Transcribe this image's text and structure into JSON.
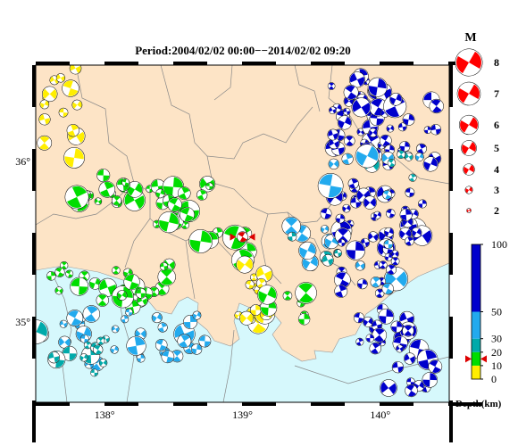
{
  "title": "Period:2004/02/02 00:00−−2014/02/02 09:20",
  "axes": {
    "x_ticks": [
      {
        "value": 138,
        "label": "138°"
      },
      {
        "value": 139,
        "label": "139°"
      },
      {
        "value": 140,
        "label": "140°"
      }
    ],
    "y_ticks": [
      {
        "value": 36,
        "label": "36°"
      },
      {
        "value": 35,
        "label": "35°"
      }
    ],
    "lon_range": [
      137.5,
      140.5
    ],
    "lat_range": [
      34.5,
      36.6
    ]
  },
  "magnitude_legend": {
    "title": "M",
    "entries": [
      {
        "m": 8,
        "label": "8"
      },
      {
        "m": 7,
        "label": "7"
      },
      {
        "m": 6,
        "label": "6"
      },
      {
        "m": 5,
        "label": "5"
      },
      {
        "m": 4,
        "label": "4"
      },
      {
        "m": 3,
        "label": "3"
      },
      {
        "m": 2,
        "label": "2"
      }
    ],
    "color": "#ff0000"
  },
  "depth_scale": {
    "title": "Depth(km)",
    "ticks": [
      {
        "value": 100,
        "label": "100"
      },
      {
        "value": 50,
        "label": "50"
      },
      {
        "value": 30,
        "label": "30"
      },
      {
        "value": 20,
        "label": "20"
      },
      {
        "value": 10,
        "label": "10"
      },
      {
        "value": 0,
        "label": "0"
      }
    ],
    "bands": [
      {
        "from": 0,
        "to": 10,
        "color": "#ffee00"
      },
      {
        "from": 10,
        "to": 20,
        "color": "#00dd00"
      },
      {
        "from": 20,
        "to": 30,
        "color": "#00aaaa"
      },
      {
        "from": 30,
        "to": 50,
        "color": "#22aaee"
      },
      {
        "from": 50,
        "to": 100,
        "color": "#0000cc"
      }
    ],
    "marker_depth": 15,
    "marker_color": "#dd0000"
  },
  "colors": {
    "land": "#fde4c6",
    "sea": "#d6f8fc",
    "border": "#888888"
  },
  "highlight_event": {
    "lon": 139.0,
    "lat": 35.53,
    "color": "#dd0000"
  }
}
